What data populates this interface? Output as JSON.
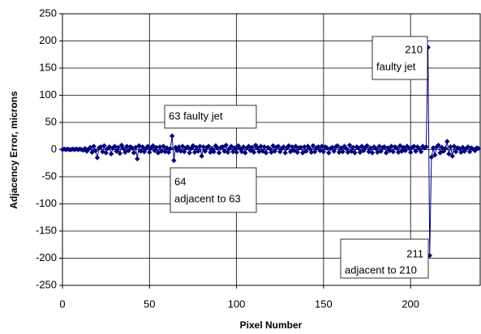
{
  "chart_data": {
    "type": "line",
    "xlabel": "Pixel Number",
    "ylabel": "Adjacency Error, microns",
    "xlim": [
      0,
      240
    ],
    "xticks": [
      0,
      50,
      100,
      150,
      200
    ],
    "ylim": [
      -250,
      250
    ],
    "yticks": [
      -250,
      -200,
      -150,
      -100,
      -50,
      0,
      50,
      100,
      150,
      200,
      250
    ],
    "grid": true,
    "x": [
      0,
      1,
      2,
      3,
      4,
      5,
      6,
      7,
      8,
      9,
      10,
      11,
      12,
      13,
      14,
      15,
      16,
      17,
      18,
      19,
      20,
      21,
      22,
      23,
      24,
      25,
      26,
      27,
      28,
      29,
      30,
      31,
      32,
      33,
      34,
      35,
      36,
      37,
      38,
      39,
      40,
      41,
      42,
      43,
      44,
      45,
      46,
      47,
      48,
      49,
      50,
      51,
      52,
      53,
      54,
      55,
      56,
      57,
      58,
      59,
      60,
      61,
      62,
      63,
      64,
      65,
      66,
      67,
      68,
      69,
      70,
      71,
      72,
      73,
      74,
      75,
      76,
      77,
      78,
      79,
      80,
      81,
      82,
      83,
      84,
      85,
      86,
      87,
      88,
      89,
      90,
      91,
      92,
      93,
      94,
      95,
      96,
      97,
      98,
      99,
      100,
      101,
      102,
      103,
      104,
      105,
      106,
      107,
      108,
      109,
      110,
      111,
      112,
      113,
      114,
      115,
      116,
      117,
      118,
      119,
      120,
      121,
      122,
      123,
      124,
      125,
      126,
      127,
      128,
      129,
      130,
      131,
      132,
      133,
      134,
      135,
      136,
      137,
      138,
      139,
      140,
      141,
      142,
      143,
      144,
      145,
      146,
      147,
      148,
      149,
      150,
      151,
      152,
      153,
      154,
      155,
      156,
      157,
      158,
      159,
      160,
      161,
      162,
      163,
      164,
      165,
      166,
      167,
      168,
      169,
      170,
      171,
      172,
      173,
      174,
      175,
      176,
      177,
      178,
      179,
      180,
      181,
      182,
      183,
      184,
      185,
      186,
      187,
      188,
      189,
      190,
      191,
      192,
      193,
      194,
      195,
      196,
      197,
      198,
      199,
      200,
      201,
      202,
      203,
      204,
      205,
      206,
      207,
      208,
      209,
      210,
      211,
      212,
      213,
      214,
      215,
      216,
      217,
      218,
      219,
      220,
      221,
      222,
      223,
      224,
      225,
      226,
      227,
      228,
      229,
      230,
      231,
      232,
      233,
      234,
      235,
      236,
      237,
      238,
      239
    ],
    "series": [
      {
        "color": "#000080",
        "values": [
          0,
          1,
          0,
          1,
          0,
          0,
          1,
          0,
          1,
          0,
          1,
          0,
          -1,
          2,
          -3,
          1,
          4,
          -5,
          6,
          -2,
          -15,
          3,
          5,
          -4,
          7,
          -6,
          2,
          5,
          -8,
          3,
          6,
          -3,
          4,
          -7,
          8,
          2,
          -5,
          6,
          -2,
          5,
          3,
          -6,
          4,
          -17,
          7,
          -3,
          5,
          -4,
          2,
          6,
          -5,
          3,
          7,
          -2,
          4,
          -6,
          5,
          -3,
          6,
          -4,
          3,
          -5,
          2,
          25,
          -20,
          4,
          -2,
          5,
          -3,
          6,
          -4,
          3,
          5,
          -6,
          2,
          7,
          -5,
          4,
          -3,
          6,
          -12,
          5,
          -3,
          4,
          6,
          -5,
          2,
          -4,
          7,
          3,
          -6,
          4,
          5,
          -3,
          8,
          -5,
          2,
          6,
          -4,
          3,
          -5,
          7,
          2,
          -4,
          5,
          -6,
          3,
          6,
          -2,
          4,
          -5,
          8,
          3,
          -4,
          6,
          -3,
          5,
          -6,
          4,
          2,
          -5,
          7,
          -3,
          4,
          6,
          -4,
          2,
          5,
          -6,
          3,
          7,
          -4,
          5,
          -2,
          6,
          -5,
          3,
          4,
          -6,
          5,
          -3,
          6,
          2,
          -5,
          7,
          -4,
          3,
          5,
          -2,
          6,
          -4,
          5,
          3,
          -6,
          2,
          4,
          -3,
          5,
          7,
          -5,
          3,
          -4,
          6,
          2,
          -5,
          8,
          -3,
          4,
          -6,
          5,
          3,
          -5,
          6,
          -2,
          4,
          7,
          -4,
          3,
          -6,
          5,
          2,
          -5,
          6,
          -3,
          4,
          5,
          -6,
          3,
          -2,
          6,
          -4,
          5,
          3,
          -5,
          7,
          -3,
          4,
          -2,
          6,
          3,
          -5,
          4,
          6,
          -3,
          5,
          2,
          -4,
          6,
          3,
          5,
          188,
          -195,
          -14,
          3,
          -10,
          5,
          8,
          -6,
          4,
          -3,
          2,
          15,
          -8,
          5,
          -12,
          6,
          -4,
          3,
          2,
          -5,
          4,
          -3,
          2,
          5,
          -4,
          3,
          1,
          -2,
          3,
          2
        ]
      }
    ],
    "annotations": [
      {
        "lines": [
          "63 faulty jet"
        ]
      },
      {
        "lines": [
          "64",
          "adjacent to 63"
        ]
      },
      {
        "lines": [
          "210",
          "faulty jet"
        ]
      },
      {
        "lines": [
          "211",
          "adjacent to 210"
        ]
      }
    ]
  }
}
